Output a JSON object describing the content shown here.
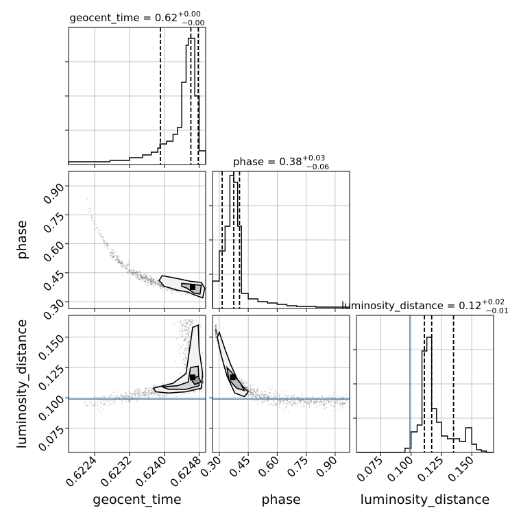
{
  "chart_data": {
    "type": "corner",
    "parameters": [
      "geocent_time",
      "phase",
      "luminosity_distance"
    ],
    "axis_labels": {
      "geocent_time": "geocent_time",
      "phase": "phase",
      "luminosity_distance": "luminosity_distance"
    },
    "ranges": {
      "geocent_time": [
        0.6218,
        0.62495
      ],
      "phase": [
        0.265,
        0.975
      ],
      "luminosity_distance": [
        0.055,
        0.168
      ]
    },
    "ticks": {
      "geocent_time": {
        "values": [
          0.6224,
          0.6232,
          0.624,
          0.6248
        ],
        "labels": [
          "0.6224",
          "0.6232",
          "0.6240",
          "0.6248"
        ]
      },
      "phase": {
        "values": [
          0.3,
          0.45,
          0.6,
          0.75,
          0.9
        ],
        "labels": [
          "0.30",
          "0.45",
          "0.60",
          "0.75",
          "0.90"
        ]
      },
      "luminosity_distance": {
        "values": [
          0.075,
          0.1,
          0.125,
          0.15
        ],
        "labels": [
          "0.075",
          "0.100",
          "0.125",
          "0.150"
        ]
      }
    },
    "titles": [
      {
        "param": "geocent_time",
        "label": "geocent_time",
        "median": "0.62",
        "plus": "+0.00",
        "minus": "−0.00"
      },
      {
        "param": "phase",
        "label": "phase",
        "median": "0.38",
        "plus": "+0.03",
        "minus": "−0.06"
      },
      {
        "param": "luminosity_distance",
        "label": "luminosity_distance",
        "median": "0.12",
        "plus": "+0.02",
        "minus": "−0.01"
      }
    ],
    "histograms": {
      "geocent_time": {
        "edges": [
          0.6218,
          0.62275,
          0.6232,
          0.6235,
          0.6237,
          0.62385,
          0.6239,
          0.62405,
          0.6242,
          0.6243,
          0.6244,
          0.6245,
          0.62455,
          0.62465,
          0.6247,
          0.6248,
          0.62495
        ],
        "heights": [
          0.02,
          0.03,
          0.05,
          0.07,
          0.09,
          0.12,
          0.15,
          0.17,
          0.22,
          0.27,
          0.6,
          0.87,
          0.92,
          0.92,
          0.5,
          0.1
        ]
      },
      "phase": {
        "edges": [
          0.265,
          0.3,
          0.33,
          0.355,
          0.375,
          0.395,
          0.415,
          0.45,
          0.5,
          0.55,
          0.6,
          0.65,
          0.7,
          0.8,
          0.975
        ],
        "heights": [
          0.2,
          0.42,
          0.6,
          0.97,
          0.92,
          0.6,
          0.11,
          0.07,
          0.05,
          0.04,
          0.03,
          0.02,
          0.015,
          0.01
        ]
      },
      "luminosity_distance": {
        "edges": [
          0.055,
          0.095,
          0.1,
          0.105,
          0.109,
          0.113,
          0.117,
          0.121,
          0.125,
          0.13,
          0.135,
          0.14,
          0.145,
          0.15,
          0.154,
          0.158,
          0.162,
          0.168
        ],
        "heights": [
          0.0,
          0.03,
          0.15,
          0.2,
          0.74,
          0.84,
          0.32,
          0.22,
          0.12,
          0.1,
          0.1,
          0.08,
          0.18,
          0.06,
          0.02,
          0.01,
          0.0
        ]
      }
    },
    "quantile_lines": {
      "geocent_time": [
        0.62391,
        0.62461,
        0.62478
      ],
      "phase": [
        0.315,
        0.375,
        0.405
      ],
      "luminosity_distance": [
        0.111,
        0.117,
        0.135
      ]
    },
    "truth_lines": {
      "luminosity_distance": 0.099
    },
    "truth_color": "#4682b4",
    "line_color": "#000000",
    "grid": true
  }
}
